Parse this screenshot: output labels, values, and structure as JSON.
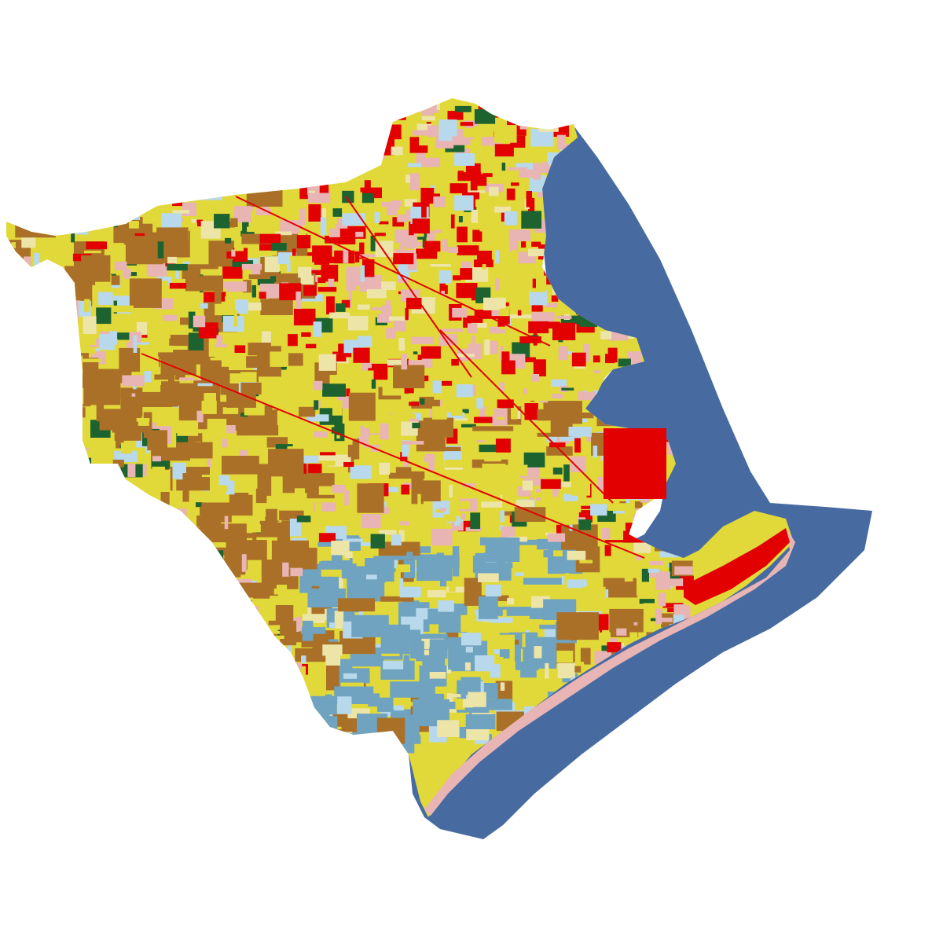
{
  "map": {
    "type": "land-cover raster",
    "legend": "none",
    "labels": "none",
    "colors": {
      "background": "#ffffff",
      "open_water": "#476ba1",
      "wetlands": "#6fa3bf",
      "herbaceous_wetland": "#b8d9eb",
      "cultivated_crops": "#e1d839",
      "pasture_hay": "#ab7028",
      "developed_high": "#e30000",
      "developed_low": "#e8b4b4",
      "grassland": "#ede5a8",
      "forest": "#1c6330",
      "barren": "#b2ada3"
    }
  }
}
